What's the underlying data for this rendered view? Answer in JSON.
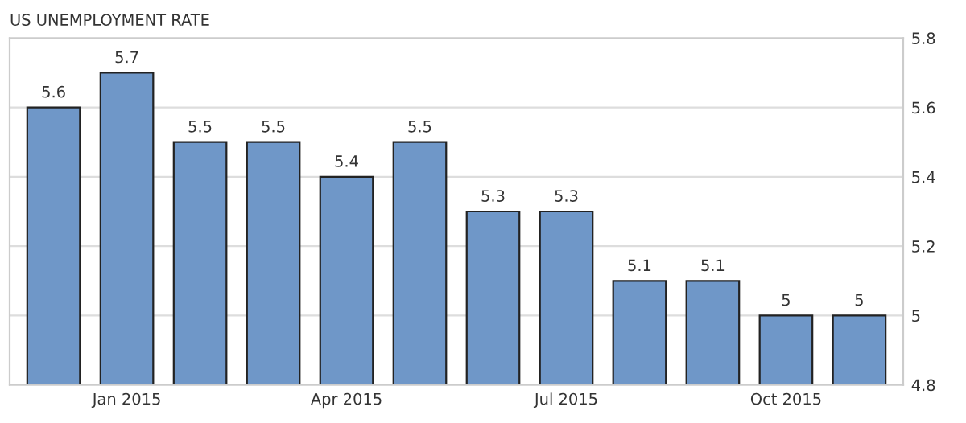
{
  "chart_data": {
    "type": "bar",
    "title": "US UNEMPLOYMENT RATE",
    "categories": [
      null,
      "Jan 2015",
      null,
      null,
      "Apr 2015",
      null,
      null,
      "Jul 2015",
      null,
      null,
      "Oct 2015",
      null
    ],
    "values": [
      5.6,
      5.7,
      5.5,
      5.5,
      5.4,
      5.5,
      5.3,
      5.3,
      5.1,
      5.1,
      5,
      5
    ],
    "color": "#6f97c8",
    "ylim": [
      4.8,
      5.8
    ],
    "yticks": [
      4.8,
      5,
      5.2,
      5.4,
      5.6,
      5.8
    ],
    "grid": "y",
    "data_labels": true
  }
}
